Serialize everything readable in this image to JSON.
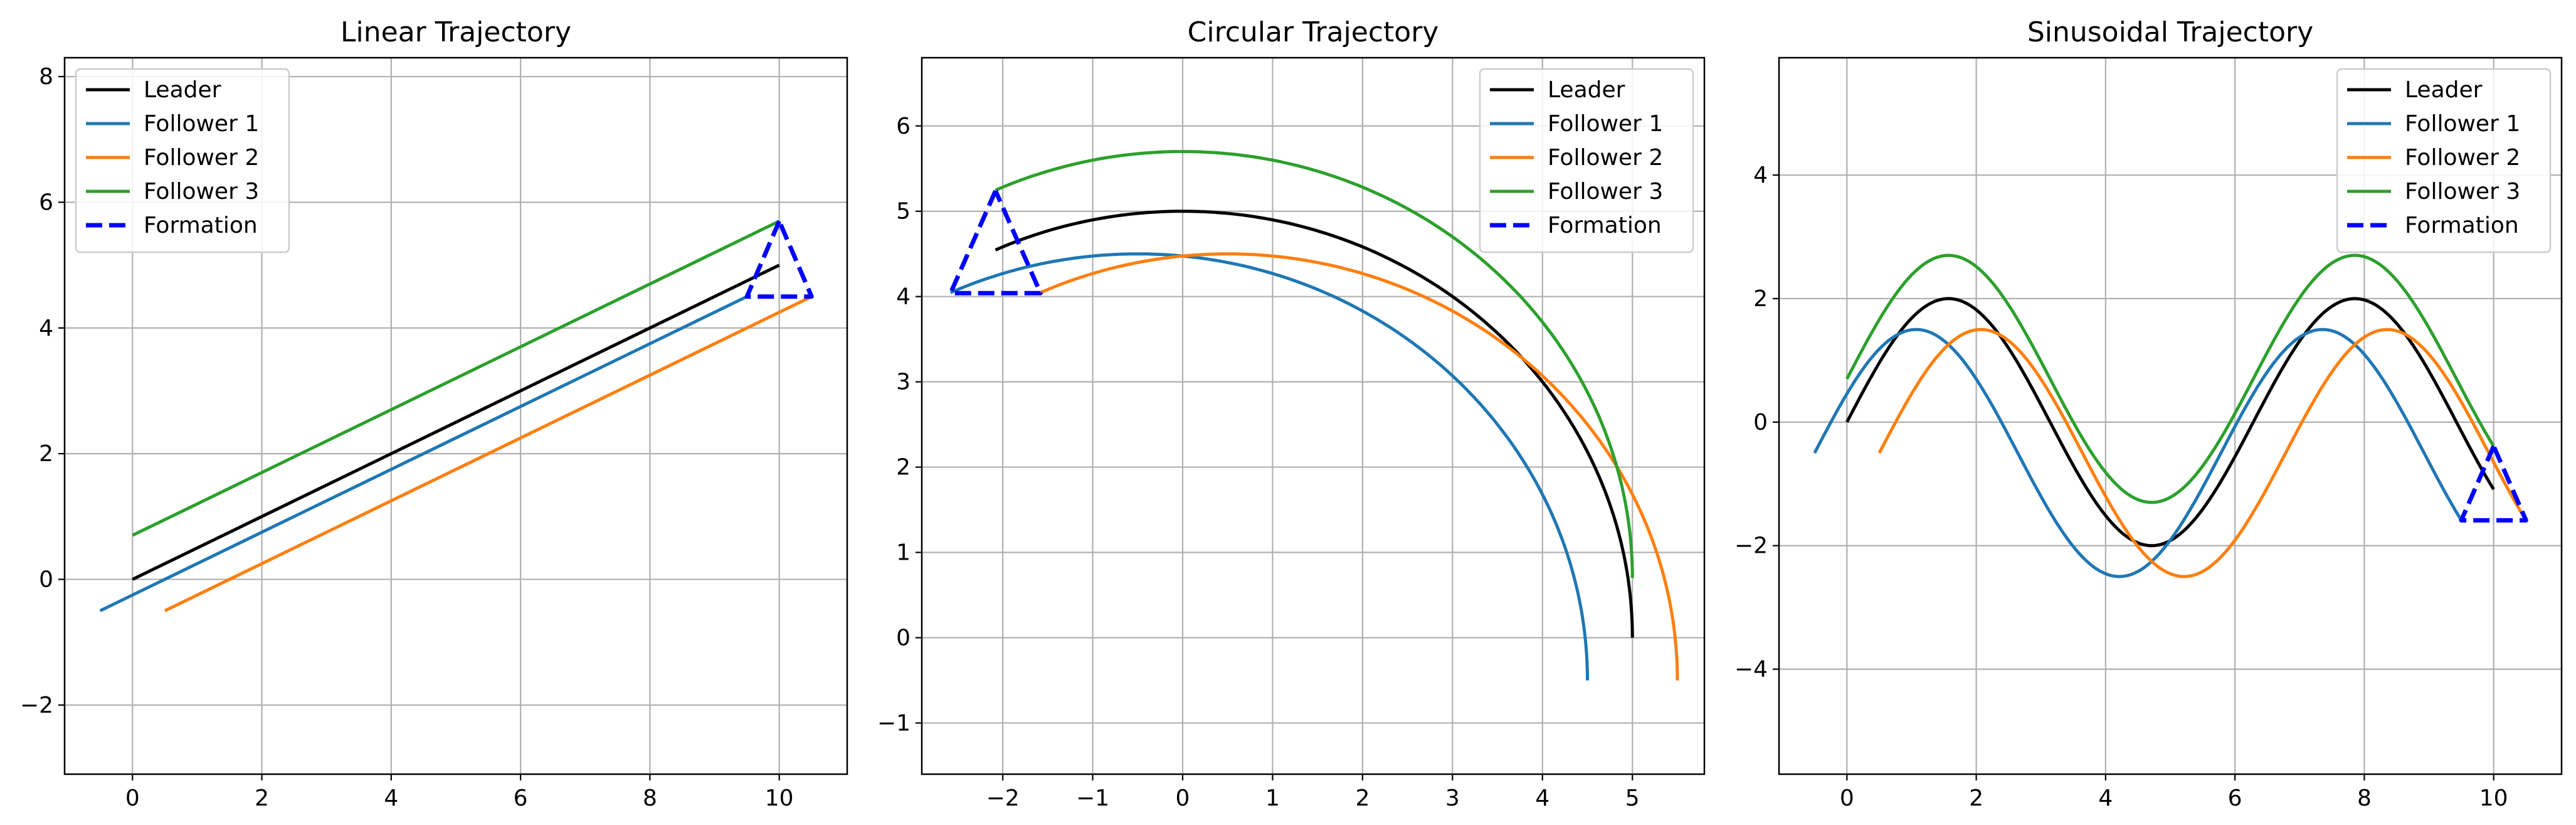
{
  "figure": {
    "background": "#ffffff",
    "grid_color": "#b0b0b0"
  },
  "chart_data": [
    {
      "type": "line",
      "title": "Linear Trajectory",
      "xlabel": "",
      "ylabel": "",
      "xlim": [
        -1.05,
        11.05
      ],
      "ylim": [
        -3.1,
        8.3
      ],
      "xticks": [
        0,
        2,
        4,
        6,
        8,
        10
      ],
      "yticks": [
        -2,
        0,
        2,
        4,
        6,
        8
      ],
      "grid": true,
      "legend_position": "top-left",
      "series": [
        {
          "name": "Leader",
          "color": "#000000",
          "style": "solid",
          "x": [
            0,
            10
          ],
          "y": [
            0,
            5
          ]
        },
        {
          "name": "Follower 1",
          "color": "#1f77b4",
          "style": "solid",
          "x": [
            -0.5,
            9.5
          ],
          "y": [
            -0.5,
            4.5
          ]
        },
        {
          "name": "Follower 2",
          "color": "#ff7f0e",
          "style": "solid",
          "x": [
            0.5,
            10.5
          ],
          "y": [
            -0.5,
            4.5
          ]
        },
        {
          "name": "Follower 3",
          "color": "#2ca02c",
          "style": "solid",
          "x": [
            0,
            10
          ],
          "y": [
            0.7,
            5.7
          ]
        },
        {
          "name": "Formation",
          "color": "#0000ff",
          "style": "dashed",
          "x": [
            10,
            9.5,
            10.5,
            10
          ],
          "y": [
            5.7,
            4.5,
            4.5,
            5.7
          ]
        }
      ]
    },
    {
      "type": "line",
      "title": "Circular Trajectory",
      "xlabel": "",
      "ylabel": "",
      "xlim": [
        -2.9,
        5.8
      ],
      "ylim": [
        -1.6,
        6.8
      ],
      "xticks": [
        -2,
        -1,
        0,
        1,
        2,
        3,
        4,
        5
      ],
      "yticks": [
        -1,
        0,
        1,
        2,
        3,
        4,
        5,
        6
      ],
      "grid": true,
      "legend_position": "top-right",
      "series": [
        {
          "name": "Leader",
          "color": "#000000",
          "style": "solid",
          "arc": {
            "cx": 0,
            "cy": 0,
            "r": 5,
            "t_start": 0,
            "t_end": 2.0
          }
        },
        {
          "name": "Follower 1",
          "color": "#1f77b4",
          "style": "solid",
          "arc": {
            "cx": -0.5,
            "cy": -0.5,
            "r": 5,
            "t_start": 0,
            "t_end": 2.0
          }
        },
        {
          "name": "Follower 2",
          "color": "#ff7f0e",
          "style": "solid",
          "arc": {
            "cx": 0.5,
            "cy": -0.5,
            "r": 5,
            "t_start": 0,
            "t_end": 2.0
          }
        },
        {
          "name": "Follower 3",
          "color": "#2ca02c",
          "style": "solid",
          "arc": {
            "cx": 0,
            "cy": 0.7,
            "r": 5,
            "t_start": 0,
            "t_end": 2.0
          }
        },
        {
          "name": "Formation",
          "color": "#0000ff",
          "style": "dashed",
          "x": [
            -2.08,
            -2.58,
            -1.58,
            -2.08
          ],
          "y": [
            5.24,
            4.04,
            4.04,
            5.24
          ]
        }
      ]
    },
    {
      "type": "line",
      "title": "Sinusoidal Trajectory",
      "xlabel": "",
      "ylabel": "",
      "xlim": [
        -1.05,
        11.05
      ],
      "ylim": [
        -5.7,
        5.9
      ],
      "xticks": [
        0,
        2,
        4,
        6,
        8,
        10
      ],
      "yticks": [
        -4,
        -2,
        0,
        2,
        4
      ],
      "grid": true,
      "legend_position": "top-right",
      "series": [
        {
          "name": "Leader",
          "color": "#000000",
          "style": "solid",
          "sine": {
            "x_start": 0,
            "x_end": 10,
            "amp": 2,
            "dx": 0,
            "dy": 0
          }
        },
        {
          "name": "Follower 1",
          "color": "#1f77b4",
          "style": "solid",
          "sine": {
            "x_start": 0,
            "x_end": 10,
            "amp": 2,
            "dx": -0.5,
            "dy": -0.5
          }
        },
        {
          "name": "Follower 2",
          "color": "#ff7f0e",
          "style": "solid",
          "sine": {
            "x_start": 0,
            "x_end": 10,
            "amp": 2,
            "dx": 0.5,
            "dy": -0.5
          }
        },
        {
          "name": "Follower 3",
          "color": "#2ca02c",
          "style": "solid",
          "sine": {
            "x_start": 0,
            "x_end": 10,
            "amp": 2,
            "dx": 0,
            "dy": 0.7
          }
        },
        {
          "name": "Formation",
          "color": "#0000ff",
          "style": "dashed",
          "x": [
            10,
            9.5,
            10.5,
            10
          ],
          "y": [
            -0.39,
            -1.59,
            -1.59,
            -0.39
          ]
        }
      ]
    }
  ]
}
